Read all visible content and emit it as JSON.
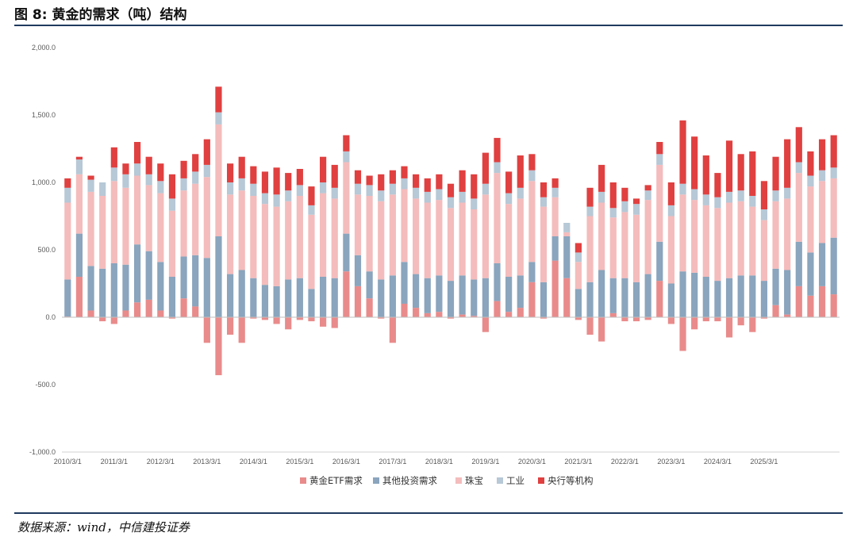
{
  "header": {
    "title": "图 8: 黄金的需求（吨）结构"
  },
  "footer": {
    "source": "数据来源：wind，中信建投证券"
  },
  "chart_data": {
    "type": "bar",
    "stacked": true,
    "title": "图 8: 黄金的需求（吨）结构",
    "xlabel": "",
    "ylabel": "",
    "ylim": [
      -1000,
      2000
    ],
    "yticks": [
      -1000,
      -500,
      0,
      500,
      1000,
      1500,
      2000
    ],
    "ytick_labels": [
      "-1,000.0",
      "-500.0",
      "0.0",
      "500.0",
      "1,000.0",
      "1,500.0",
      "2,000.0"
    ],
    "xtick_labels": [
      "2010/3/1",
      "2011/3/1",
      "2012/3/1",
      "2013/3/1",
      "2014/3/1",
      "2015/3/1",
      "2016/3/1",
      "2017/3/1",
      "2018/3/1",
      "2019/3/1",
      "2020/3/1",
      "2021/3/1",
      "2022/3/1",
      "2023/3/1",
      "2024/3/1",
      "2025/3/1"
    ],
    "xtick_every": 4,
    "grid": false,
    "legend_position": "bottom",
    "colors": {
      "etf": "#e98b8b",
      "other_invest": "#8aa5bd",
      "jewelry": "#f4bcbc",
      "industry": "#b7c8d6",
      "central_bank": "#e04040"
    },
    "series": [
      {
        "name": "黄金ETF需求",
        "key": "etf",
        "values": [
          5,
          300,
          50,
          -30,
          -50,
          50,
          110,
          130,
          50,
          -10,
          140,
          80,
          -190,
          -430,
          -130,
          -190,
          -10,
          -20,
          -50,
          -90,
          -20,
          -30,
          -70,
          -80,
          340,
          230,
          140,
          -10,
          -190,
          100,
          70,
          30,
          40,
          -10,
          20,
          10,
          -110,
          120,
          40,
          70,
          260,
          -10,
          420,
          290,
          -20,
          -130,
          -180,
          30,
          -30,
          -30,
          -20,
          270,
          -50,
          -250,
          -90,
          -30,
          -30,
          -150,
          -60,
          -110,
          -10,
          90,
          20,
          230,
          160,
          230,
          170
        ]
      },
      {
        "name": "其他投资需求",
        "key": "other_invest",
        "values": [
          275,
          320,
          330,
          360,
          400,
          340,
          430,
          360,
          360,
          300,
          310,
          380,
          440,
          600,
          320,
          350,
          290,
          240,
          230,
          280,
          290,
          210,
          300,
          290,
          280,
          230,
          200,
          280,
          310,
          310,
          250,
          260,
          270,
          270,
          290,
          270,
          290,
          280,
          260,
          240,
          150,
          260,
          180,
          310,
          210,
          260,
          350,
          260,
          290,
          260,
          320,
          290,
          250,
          340,
          330,
          300,
          270,
          290,
          310,
          310,
          270,
          270,
          330,
          330,
          320,
          320,
          420
        ]
      },
      {
        "name": "珠宝",
        "key": "jewelry",
        "values": [
          570,
          440,
          550,
          540,
          610,
          570,
          510,
          490,
          510,
          490,
          490,
          530,
          600,
          830,
          590,
          590,
          610,
          600,
          590,
          580,
          610,
          550,
          620,
          590,
          530,
          450,
          560,
          580,
          600,
          540,
          560,
          560,
          560,
          540,
          540,
          520,
          620,
          670,
          540,
          570,
          600,
          560,
          290,
          30,
          200,
          490,
          500,
          450,
          490,
          500,
          550,
          570,
          500,
          570,
          540,
          530,
          540,
          560,
          550,
          510,
          450,
          500,
          530,
          510,
          490,
          460,
          440
        ]
      },
      {
        "name": "工业",
        "key": "industry",
        "values": [
          110,
          110,
          90,
          100,
          100,
          100,
          90,
          80,
          90,
          90,
          90,
          90,
          90,
          90,
          90,
          90,
          90,
          80,
          90,
          80,
          80,
          70,
          80,
          80,
          80,
          80,
          80,
          80,
          80,
          80,
          80,
          80,
          80,
          80,
          80,
          80,
          80,
          80,
          80,
          80,
          80,
          70,
          70,
          70,
          70,
          70,
          80,
          70,
          80,
          80,
          70,
          80,
          80,
          80,
          80,
          80,
          80,
          80,
          80,
          80,
          80,
          80,
          80,
          80,
          80,
          80,
          80
        ]
      },
      {
        "name": "央行等机构",
        "key": "central_bank",
        "values": [
          70,
          20,
          30,
          0,
          150,
          80,
          160,
          130,
          130,
          180,
          130,
          130,
          190,
          190,
          140,
          160,
          130,
          160,
          200,
          130,
          120,
          140,
          190,
          170,
          120,
          100,
          70,
          120,
          100,
          90,
          100,
          100,
          110,
          100,
          160,
          180,
          230,
          180,
          160,
          240,
          120,
          110,
          70,
          0,
          70,
          140,
          200,
          190,
          100,
          40,
          40,
          90,
          170,
          470,
          390,
          290,
          180,
          380,
          270,
          330,
          210,
          250,
          360,
          260,
          180,
          230,
          240
        ]
      }
    ]
  }
}
